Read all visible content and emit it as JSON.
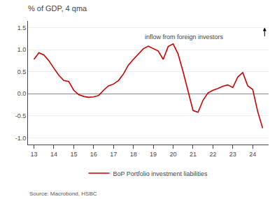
{
  "chart_data": {
    "type": "line",
    "title": "% of GDP, 4 qma",
    "source": "Source: Macrobond, HSBC",
    "annotation": "inflow from foreign investors",
    "x": [
      13.0,
      13.25,
      13.5,
      13.75,
      14.0,
      14.25,
      14.5,
      14.75,
      15.0,
      15.25,
      15.5,
      15.75,
      16.0,
      16.25,
      16.5,
      16.75,
      17.0,
      17.25,
      17.5,
      17.75,
      18.0,
      18.25,
      18.5,
      18.75,
      19.0,
      19.25,
      19.5,
      19.75,
      20.0,
      20.25,
      20.5,
      20.75,
      21.0,
      21.25,
      21.5,
      21.75,
      22.0,
      22.25,
      22.5,
      22.75,
      23.0,
      23.25,
      23.5,
      23.75,
      24.0,
      24.25,
      24.5
    ],
    "series": [
      {
        "name": "BoP Portfolio investment liabilities",
        "color": "#cc0000",
        "values": [
          0.78,
          0.93,
          0.88,
          0.75,
          0.58,
          0.42,
          0.3,
          0.28,
          0.08,
          -0.02,
          -0.06,
          -0.08,
          -0.07,
          -0.04,
          0.08,
          0.18,
          0.22,
          0.3,
          0.45,
          0.65,
          0.78,
          0.9,
          1.02,
          1.08,
          1.03,
          0.97,
          0.78,
          1.07,
          1.13,
          0.9,
          0.5,
          0.05,
          -0.38,
          -0.42,
          -0.15,
          0.02,
          0.08,
          0.12,
          0.17,
          0.2,
          0.14,
          0.38,
          0.48,
          0.18,
          0.1,
          -0.4,
          -0.78
        ]
      }
    ],
    "xlim": [
      12.7,
      24.8
    ],
    "xticks": [
      13,
      14,
      15,
      16,
      17,
      18,
      19,
      20,
      21,
      22,
      23,
      24
    ],
    "ylim": [
      -1.15,
      1.65
    ],
    "yticks": [
      {
        "value": -1.0,
        "label": "-1.0"
      },
      -0.5,
      {
        "value": 0.0,
        "label": "0.0"
      },
      0.5,
      {
        "value": 1.0,
        "label": "1.0"
      },
      1.5
    ],
    "grid": true,
    "legend": "bottom"
  }
}
